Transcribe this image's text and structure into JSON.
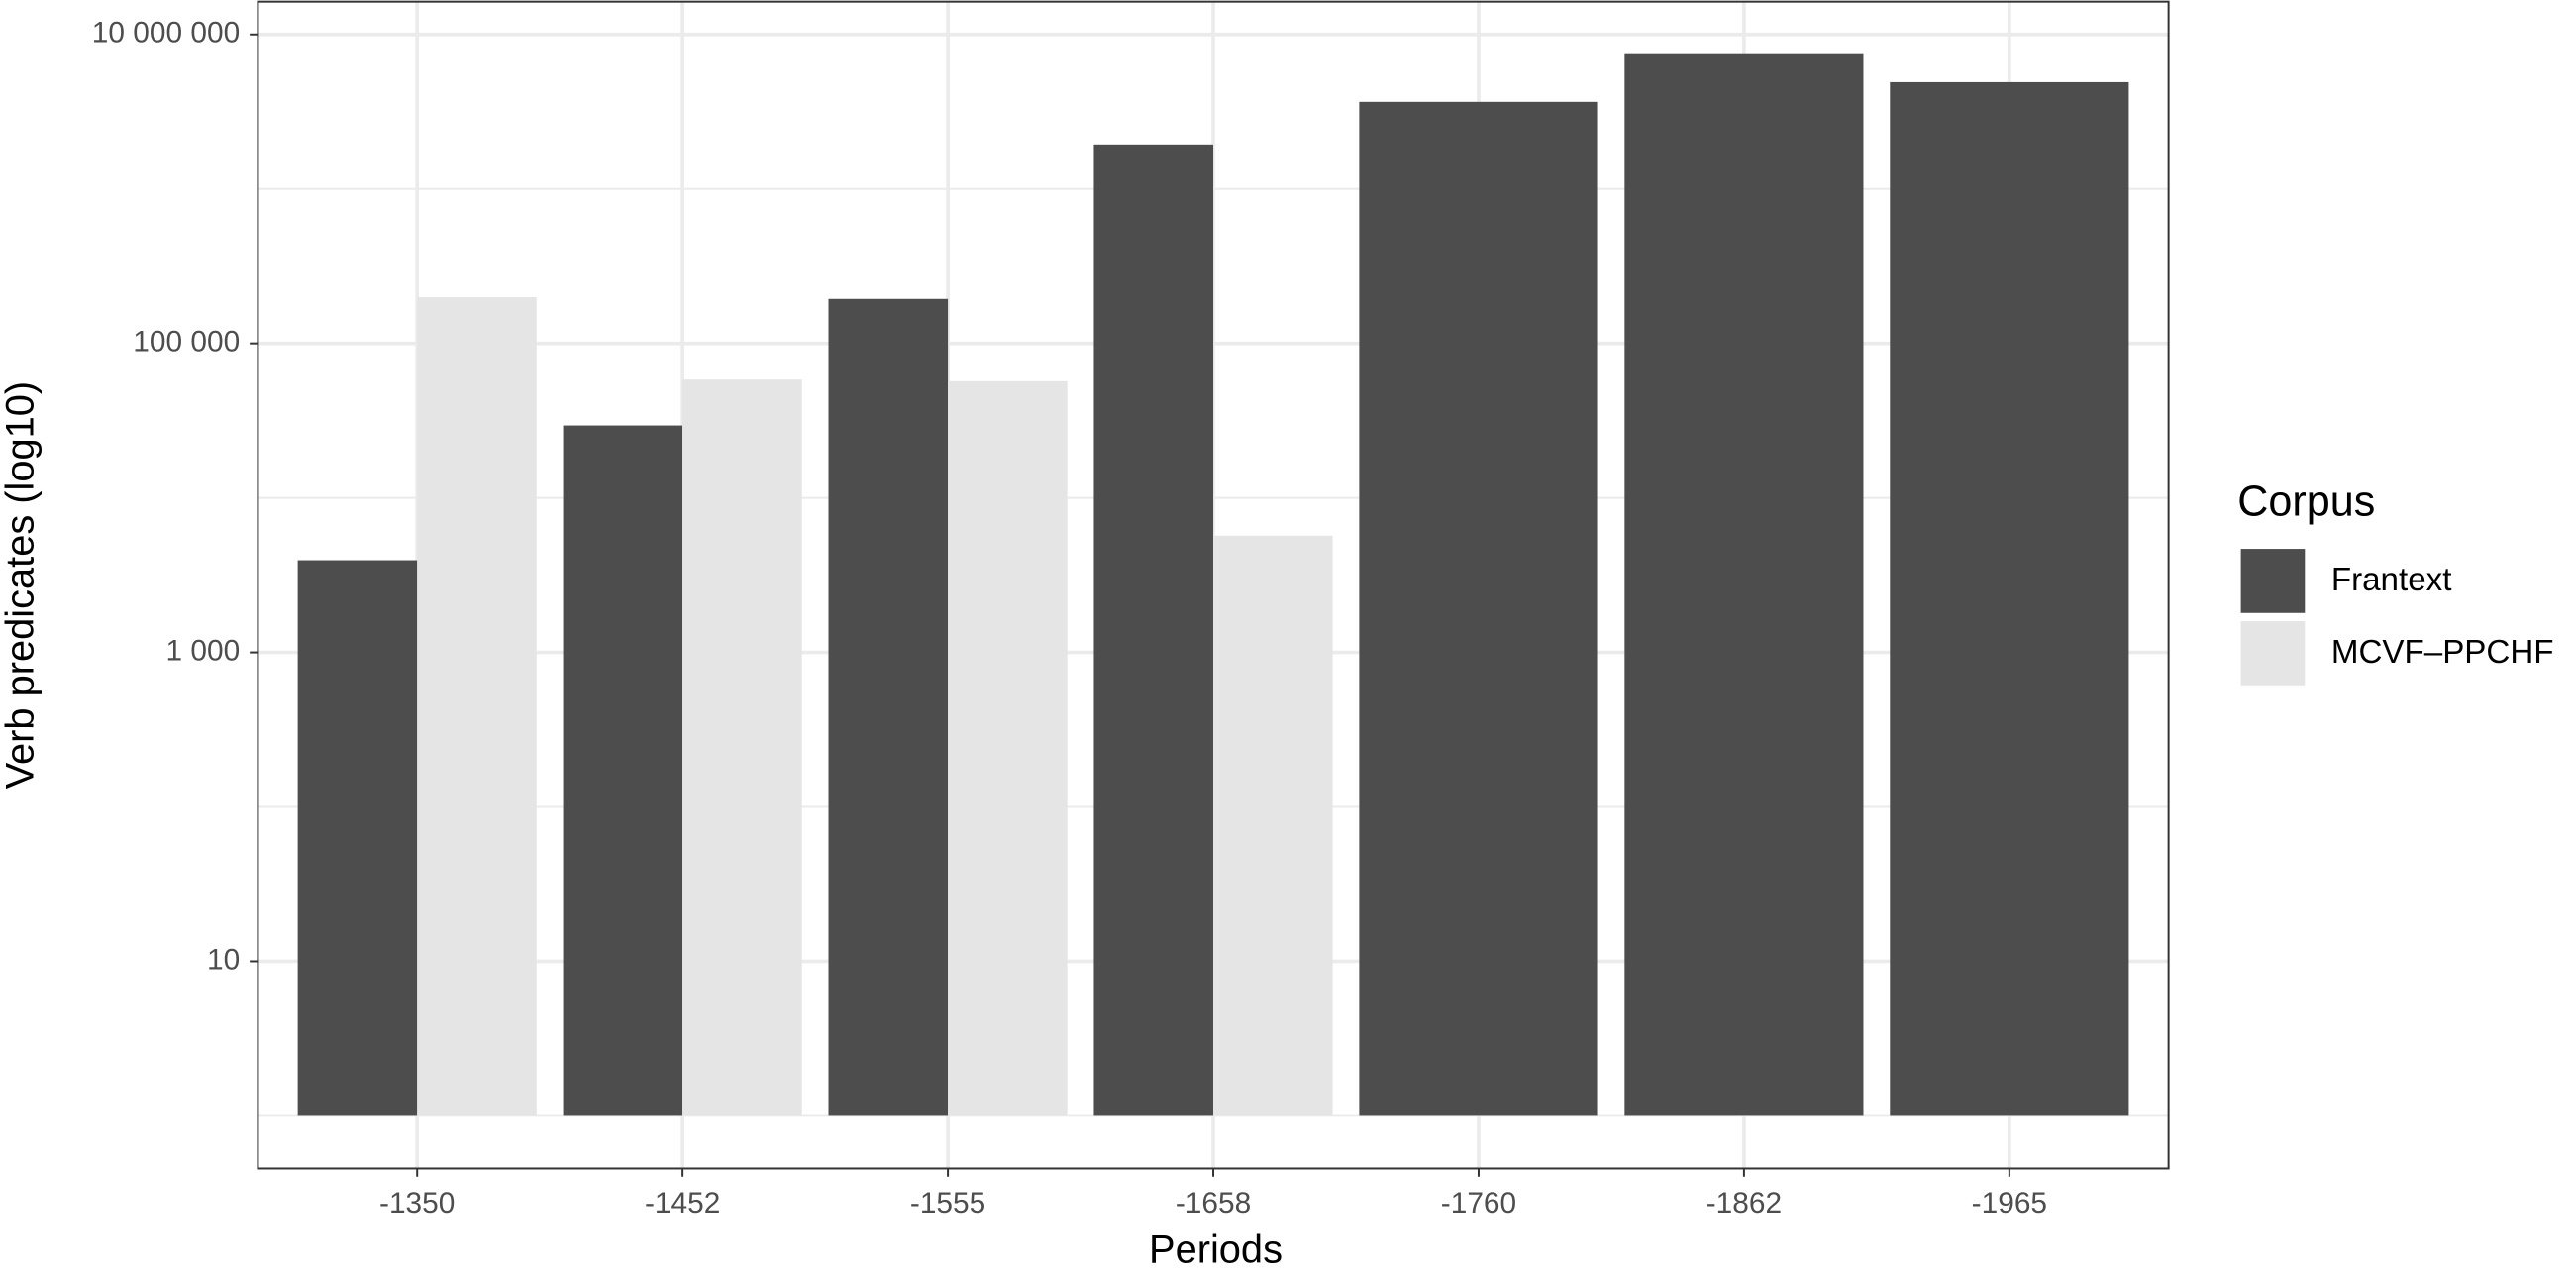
{
  "chart_data": {
    "type": "bar",
    "log_scale": true,
    "x_label": "Periods",
    "y_label": "Verb predicates (log10)",
    "categories": [
      "-1350",
      "-1452",
      "-1555",
      "-1658",
      "-1760",
      "-1862",
      "-1965"
    ],
    "series": [
      {
        "name": "Frantext",
        "color": "#4d4d4d",
        "values": [
          3950,
          29400,
          194000,
          1940000,
          3660000,
          7450000,
          4910000
        ]
      },
      {
        "name": "MCVF–PPCHF",
        "color": "#e5e5e5",
        "values": [
          199000,
          58300,
          56900,
          5690,
          null,
          null,
          null
        ]
      }
    ],
    "ylim": [
      0.457,
      16300000
    ],
    "yticks": [
      10,
      {
        "value": 1000,
        "label": "1 000"
      },
      {
        "value": 100000,
        "label": "100 000"
      },
      {
        "value": 10000000,
        "label": "10 000 000"
      }
    ],
    "y_minor_grid": [
      1,
      100,
      10000,
      1000000
    ],
    "grid": true,
    "legend_title": "Corpus",
    "legend_position": "right"
  }
}
